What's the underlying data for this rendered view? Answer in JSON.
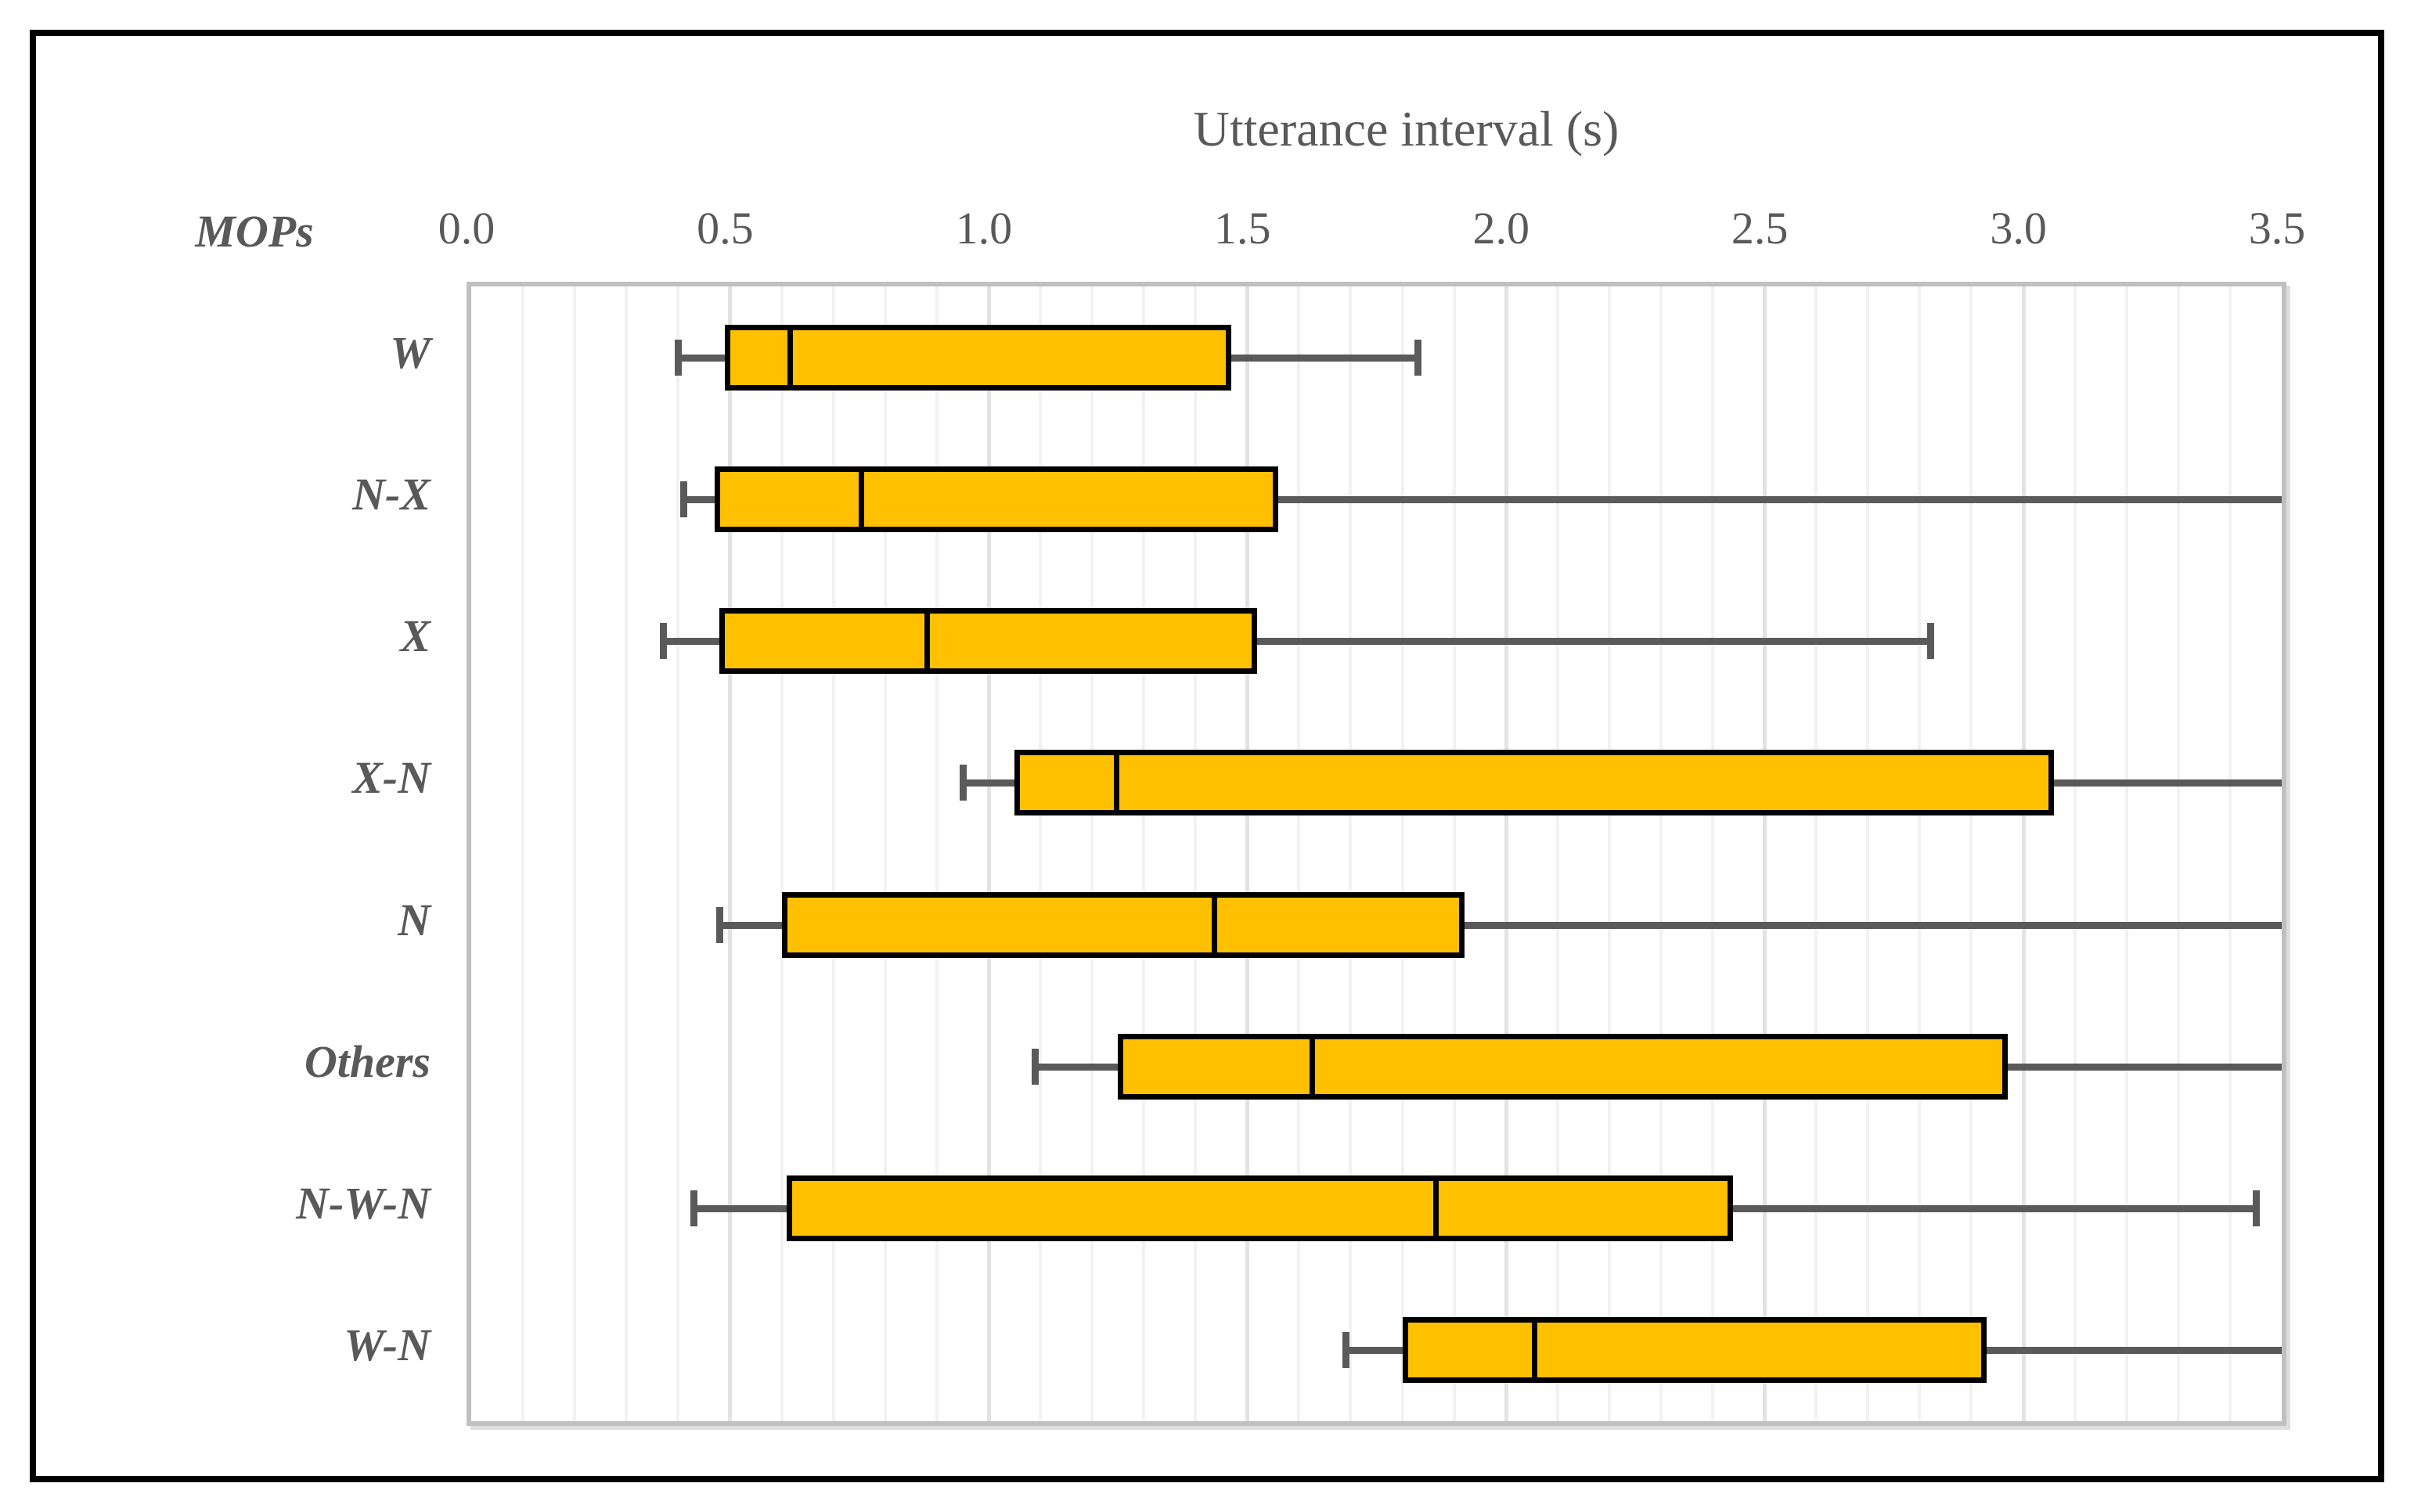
{
  "window": {
    "background": "#ffffff",
    "frame_color": "#000000"
  },
  "chart_data": {
    "type": "boxplot",
    "orientation": "horizontal",
    "title": "Utterance interval (s)",
    "ylabel": "MOPs",
    "xlabel": "Utterance interval (s)",
    "xlim": [
      0,
      3.5
    ],
    "xticks": [
      0.0,
      0.5,
      1.0,
      1.5,
      2.0,
      2.5,
      3.0,
      3.5
    ],
    "xtick_labels": [
      "0.0",
      "0.5",
      "1.0",
      "1.5",
      "2.0",
      "2.5",
      "3.0",
      "3.5"
    ],
    "grid": {
      "minor_step": 0.1,
      "major_step": 0.5,
      "minor_color": "#f2f2f2",
      "major_color": "#e3e3e3"
    },
    "legend": "none",
    "categories": [
      "W",
      "N-X",
      "X",
      "X-N",
      "N",
      "Others",
      "N-W-N",
      "W-N"
    ],
    "series": [
      {
        "category": "W",
        "whisker_low": 0.4,
        "q1": 0.49,
        "median": 0.61,
        "q3": 1.47,
        "whisker_high": 1.83,
        "cap_low": true,
        "cap_high": true
      },
      {
        "category": "N-X",
        "whisker_low": 0.41,
        "q1": 0.47,
        "median": 0.75,
        "q3": 1.56,
        "whisker_high": 3.5,
        "cap_low": true,
        "cap_high": false
      },
      {
        "category": "X",
        "whisker_low": 0.37,
        "q1": 0.48,
        "median": 0.88,
        "q3": 1.52,
        "whisker_high": 2.82,
        "cap_low": true,
        "cap_high": true
      },
      {
        "category": "X-N",
        "whisker_low": 0.95,
        "q1": 1.05,
        "median": 1.24,
        "q3": 3.06,
        "whisker_high": 3.5,
        "cap_low": true,
        "cap_high": false
      },
      {
        "category": "N",
        "whisker_low": 0.48,
        "q1": 0.6,
        "median": 1.44,
        "q3": 1.92,
        "whisker_high": 3.5,
        "cap_low": true,
        "cap_high": false
      },
      {
        "category": "Others",
        "whisker_low": 1.09,
        "q1": 1.25,
        "median": 1.62,
        "q3": 2.97,
        "whisker_high": 3.5,
        "cap_low": true,
        "cap_high": false
      },
      {
        "category": "N-W-N",
        "whisker_low": 0.43,
        "q1": 0.61,
        "median": 1.87,
        "q3": 2.44,
        "whisker_high": 3.45,
        "cap_low": true,
        "cap_high": true
      },
      {
        "category": "W-N",
        "whisker_low": 1.69,
        "q1": 1.8,
        "median": 2.05,
        "q3": 2.93,
        "whisker_high": 3.5,
        "cap_low": true,
        "cap_high": false
      }
    ],
    "style": {
      "box_fill": "#FFC000",
      "box_border": "#000000",
      "median_color": "#000000",
      "whisker_color": "#5a5a5a",
      "plot_border": "#c0c0c0",
      "text_color": "#595959"
    }
  }
}
